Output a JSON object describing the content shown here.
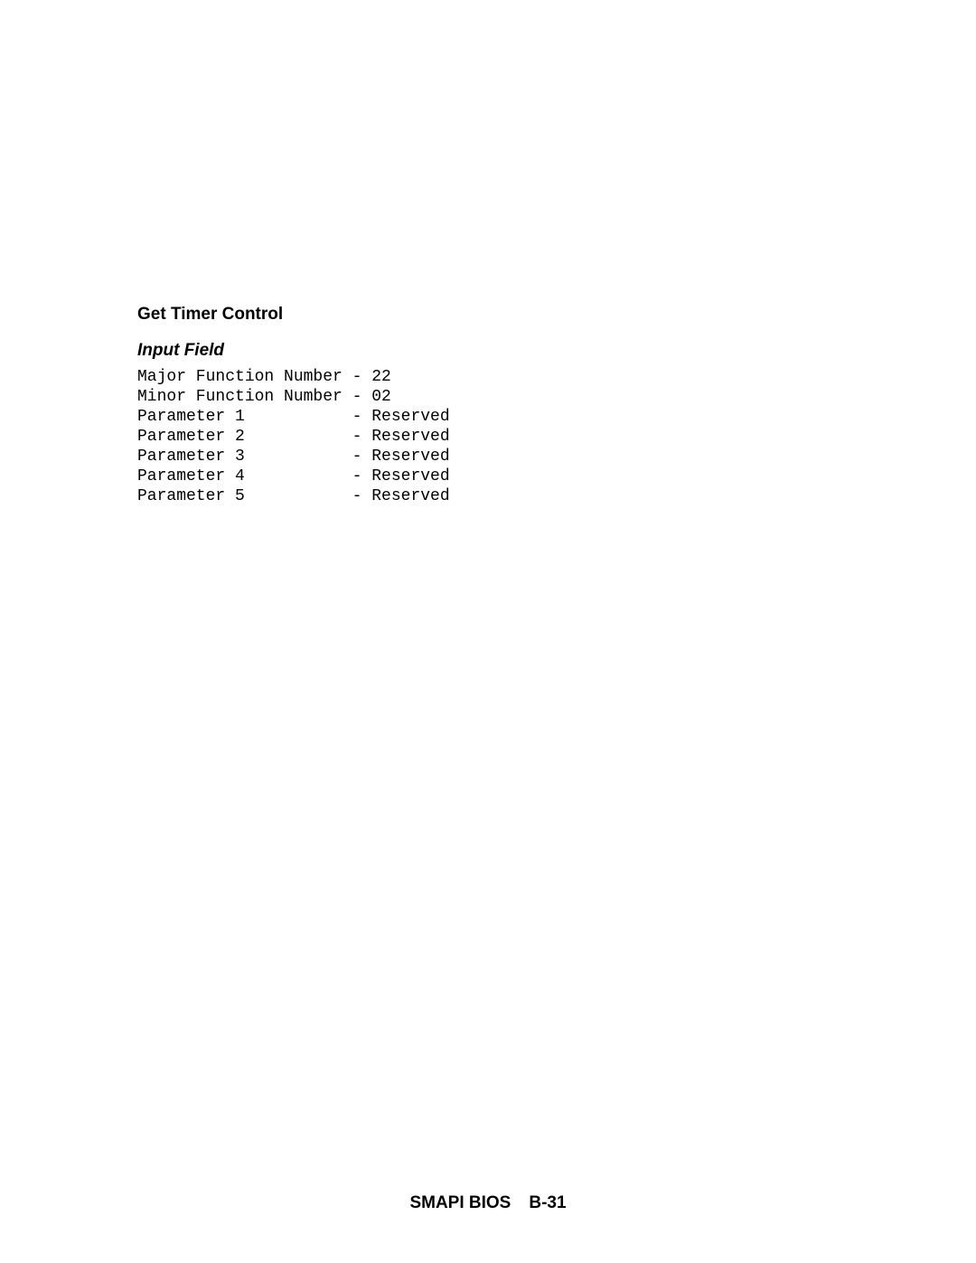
{
  "section": {
    "title": "Get Timer Control",
    "subsection": "Input Field",
    "rows": [
      {
        "label": "Major Function Number",
        "value": "22"
      },
      {
        "label": "Minor Function Number",
        "value": "02"
      },
      {
        "label": "Parameter 1",
        "value": "Reserved"
      },
      {
        "label": "Parameter 2",
        "value": "Reserved"
      },
      {
        "label": "Parameter 3",
        "value": "Reserved"
      },
      {
        "label": "Parameter 4",
        "value": "Reserved"
      },
      {
        "label": "Parameter 5",
        "value": "Reserved"
      }
    ],
    "label_width_chars": 21,
    "separator": " - "
  },
  "footer": {
    "label": "SMAPI BIOS",
    "page": "B-31"
  },
  "typography": {
    "title_fontsize": 19,
    "subsection_fontsize": 19,
    "mono_fontsize": 18,
    "footer_fontsize": 19
  },
  "colors": {
    "text": "#000000",
    "background": "#ffffff"
  }
}
